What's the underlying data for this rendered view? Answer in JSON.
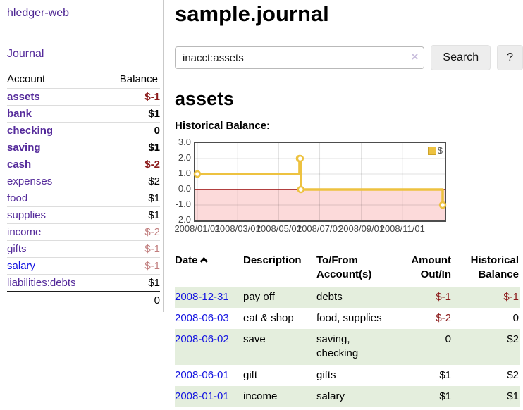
{
  "colors": {
    "purple_link": "#552b9b",
    "blue_link": "#1414e0",
    "negative_strong": "#8b1a1a",
    "negative_soft": "#c17d7d",
    "row_alt_green": "#e4eedd",
    "chart_line_yellow": "#edc240",
    "chart_negative_fill": "#fcdada",
    "chart_zero_line": "#990000",
    "chart_border": "#4d4d4d"
  },
  "app": {
    "title": "hledger-web"
  },
  "sidebar": {
    "journal_link": "Journal",
    "accounts_table": {
      "headers": {
        "account": "Account",
        "balance": "Balance"
      },
      "rows": [
        {
          "name": "assets",
          "balance": "$-1"
        },
        {
          "name": "bank",
          "balance": "$1"
        },
        {
          "name": "checking",
          "balance": "0"
        },
        {
          "name": "saving",
          "balance": "$1"
        },
        {
          "name": "cash",
          "balance": "$-2"
        },
        {
          "name": "expenses",
          "balance": "$2"
        },
        {
          "name": "food",
          "balance": "$1"
        },
        {
          "name": "supplies",
          "balance": "$1"
        },
        {
          "name": "income",
          "balance": "$-2"
        },
        {
          "name": "gifts",
          "balance": "$-1"
        },
        {
          "name": "salary",
          "balance": "$-1"
        },
        {
          "name": "liabilities:debts",
          "balance": "$1"
        }
      ],
      "total": "0"
    }
  },
  "main": {
    "title": "sample.journal",
    "search": {
      "value": "inacct:assets",
      "clear_icon": "×",
      "search_button": "Search",
      "help_button": "?"
    },
    "account_heading": "assets",
    "chart_heading": "Historical Balance:"
  },
  "chart_data": {
    "type": "line",
    "step": true,
    "title": "Historical Balance:",
    "x_range": [
      "2008-01-01",
      "2008-12-31"
    ],
    "ylim": [
      -2,
      3
    ],
    "y_ticks": [
      "3.0",
      "2.0",
      "1.0",
      "0.0",
      "-1.0",
      "-2.0"
    ],
    "x_ticks": [
      "2008/01/01",
      "2008/03/01",
      "2008/05/01",
      "2008/07/01",
      "2008/09/01",
      "2008/11/01"
    ],
    "grid": true,
    "legend": {
      "label": "$",
      "position": "top-right"
    },
    "series": [
      {
        "name": "$",
        "color": "#edc240",
        "points": [
          {
            "date": "2008-01-01",
            "value": 1
          },
          {
            "date": "2008-06-01",
            "value": 2
          },
          {
            "date": "2008-06-02",
            "value": 2
          },
          {
            "date": "2008-06-03",
            "value": 0
          },
          {
            "date": "2008-12-31",
            "value": -1
          }
        ]
      }
    ]
  },
  "register": {
    "headers": {
      "date": "Date",
      "sort_icon": "chevron-up",
      "description": "Description",
      "accounts_line1": "To/From",
      "accounts_line2": "Account(s)",
      "amount_line1": "Amount",
      "amount_line2": "Out/In",
      "balance_line1": "Historical",
      "balance_line2": "Balance"
    },
    "rows": [
      {
        "date": "2008-12-31",
        "description": "pay off",
        "accounts": "debts",
        "amount": "$-1",
        "balance": "$-1"
      },
      {
        "date": "2008-06-03",
        "description": "eat & shop",
        "accounts": "food, supplies",
        "amount": "$-2",
        "balance": "0"
      },
      {
        "date": "2008-06-02",
        "description": "save",
        "accounts": "saving, checking",
        "amount": "0",
        "balance": "$2"
      },
      {
        "date": "2008-06-01",
        "description": "gift",
        "accounts": "gifts",
        "amount": "$1",
        "balance": "$2"
      },
      {
        "date": "2008-01-01",
        "description": "income",
        "accounts": "salary",
        "amount": "$1",
        "balance": "$1"
      }
    ]
  }
}
